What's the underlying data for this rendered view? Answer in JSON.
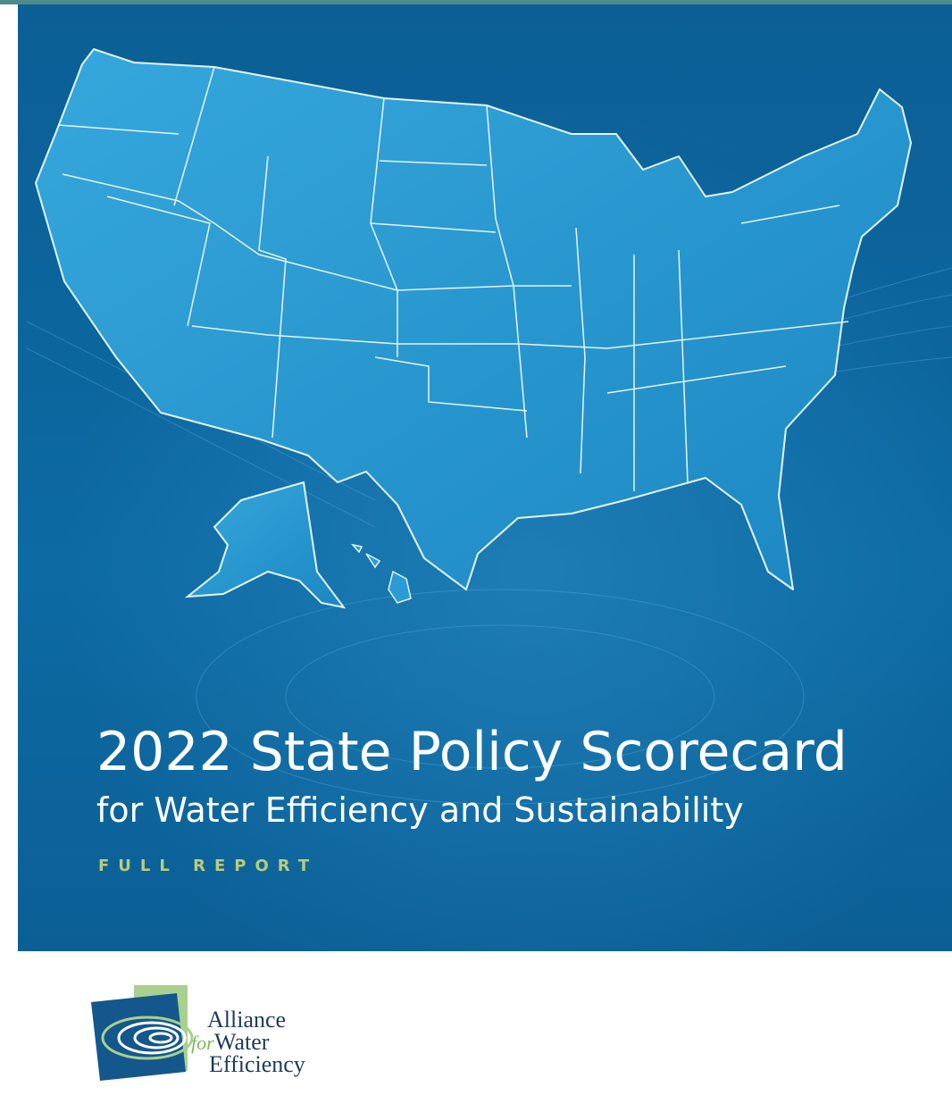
{
  "cover": {
    "title": "2022 State Policy Scorecard",
    "subtitle": "for Water Efficiency and Sustainability",
    "label": "FULL REPORT"
  },
  "logo": {
    "line1": "Alliance",
    "line2_prefix": "for",
    "line2": "Water",
    "line3": "Efficiency"
  }
}
